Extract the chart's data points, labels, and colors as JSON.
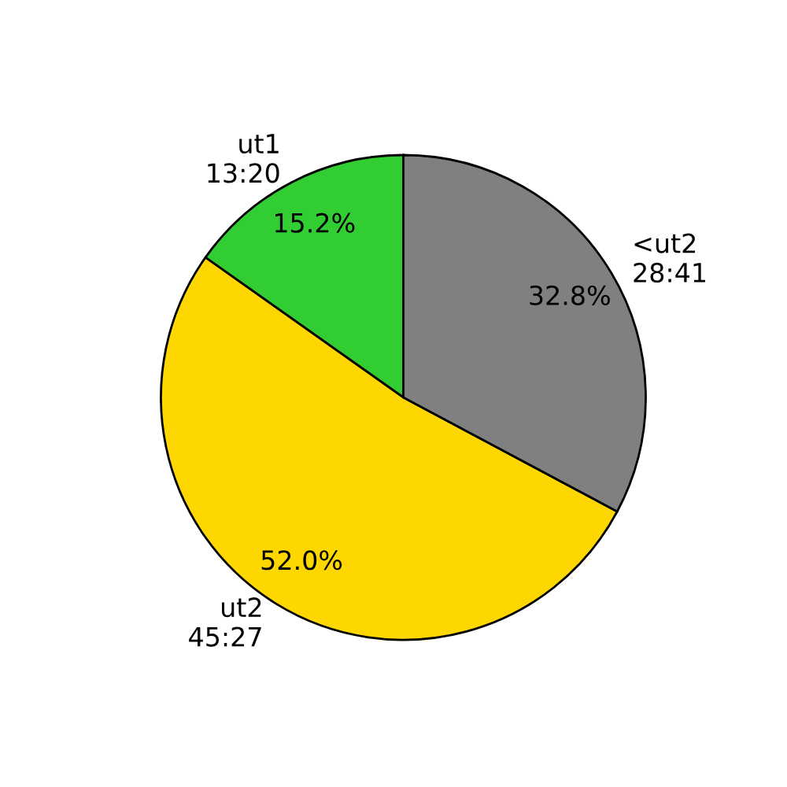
{
  "chart_data": {
    "type": "pie",
    "categories": [
      "ut1\n13:20",
      "ut2\n45:27",
      "<ut2\n28:41"
    ],
    "values": [
      15.2,
      52.0,
      32.8
    ],
    "colors": [
      "#32cd32",
      "#ffd700",
      "#808080"
    ],
    "value_labels": [
      "15.2%",
      "52.0%",
      "32.8%"
    ]
  }
}
